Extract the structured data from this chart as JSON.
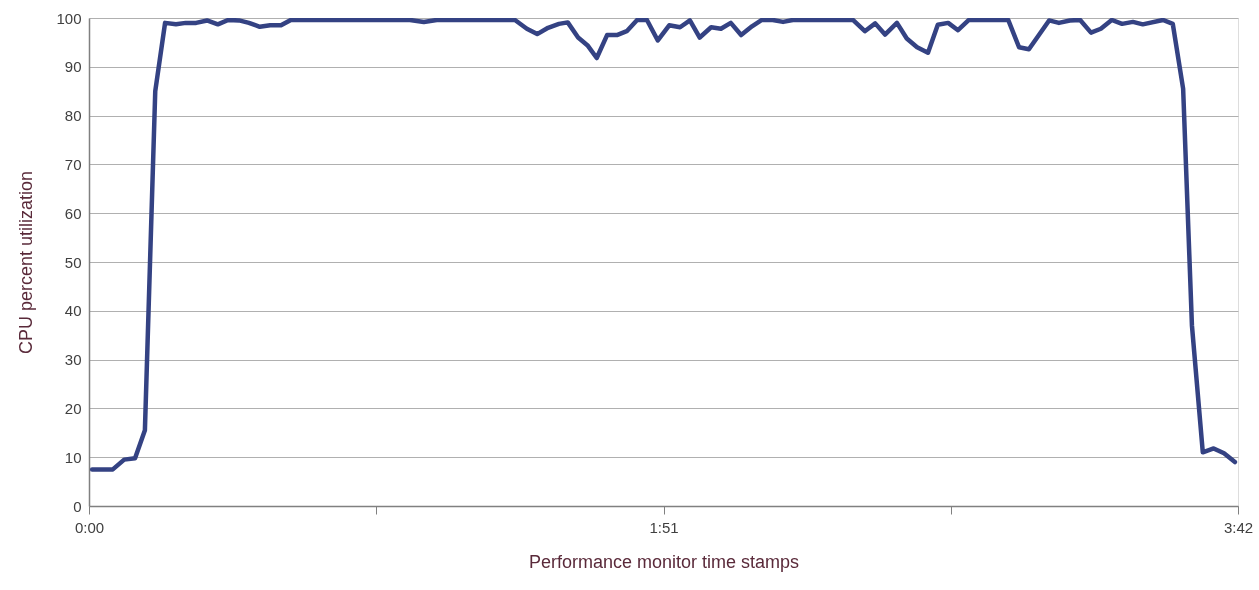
{
  "chart_data": {
    "type": "line",
    "xlabel": "Performance monitor time stamps",
    "ylabel": "CPU percent utilization",
    "xlim": [
      0,
      222
    ],
    "ylim": [
      0,
      100
    ],
    "xticks": [
      {
        "value": 0,
        "label": "0:00"
      },
      {
        "value": 55.5,
        "label": null
      },
      {
        "value": 111,
        "label": "1:51"
      },
      {
        "value": 166.5,
        "label": null
      },
      {
        "value": 222,
        "label": "3:42"
      }
    ],
    "yticks": [
      0,
      10,
      20,
      30,
      40,
      50,
      60,
      70,
      80,
      90,
      100
    ],
    "grid": "y",
    "marker": "none",
    "line_style": "solid",
    "series": [
      {
        "color": "#344283",
        "x": [
          0.6,
          4.6,
          6.8,
          8.9,
          10.8,
          12.8,
          14.7,
          16.8,
          18.7,
          20.7,
          22.8,
          24.9,
          26.9,
          29.0,
          30.9,
          33.0,
          35.0,
          37.1,
          39.0,
          42.7,
          62.0,
          64.7,
          67.2,
          82.3,
          84.6,
          86.6,
          88.7,
          90.8,
          92.5,
          94.5,
          96.4,
          98.1,
          100.1,
          102.0,
          103.9,
          105.9,
          107.8,
          109.9,
          112.1,
          114.2,
          116.1,
          118.0,
          120.2,
          122.1,
          124.0,
          126.0,
          128.1,
          130.0,
          132.1,
          134.1,
          136.0,
          147.6,
          149.9,
          151.9,
          153.8,
          156.1,
          158.0,
          160.0,
          162.1,
          164.0,
          166.0,
          167.9,
          170.0,
          177.6,
          179.7,
          181.6,
          185.5,
          187.4,
          189.5,
          191.5,
          193.6,
          195.5,
          197.6,
          199.6,
          201.7,
          203.6,
          207.5,
          209.4,
          211.4,
          213.1,
          215.2,
          217.3,
          219.3,
          221.4
        ],
        "values": [
          7.5,
          7.5,
          9.5,
          9.8,
          15.5,
          85,
          99,
          98.7,
          99,
          99,
          99.5,
          98.7,
          99.6,
          99.5,
          99,
          98.2,
          98.5,
          98.5,
          99.6,
          99.6,
          99.6,
          99.2,
          99.6,
          99.6,
          97.8,
          96.7,
          98,
          98.8,
          99.1,
          96,
          94.3,
          91.8,
          96.5,
          96.5,
          97.3,
          99.6,
          99.6,
          95.4,
          98.5,
          98.1,
          99.5,
          96,
          98.1,
          97.8,
          99,
          96.5,
          98.3,
          99.6,
          99.6,
          99.2,
          99.6,
          99.6,
          97.3,
          98.9,
          96.6,
          99,
          95.8,
          94,
          92.9,
          98.6,
          99,
          97.5,
          99.6,
          99.6,
          94,
          93.6,
          99.5,
          99,
          99.5,
          99.6,
          97,
          97.8,
          99.6,
          98.8,
          99.2,
          98.7,
          99.6,
          98.8,
          85.5,
          37,
          11,
          11.8,
          10.8,
          9
        ]
      }
    ]
  }
}
